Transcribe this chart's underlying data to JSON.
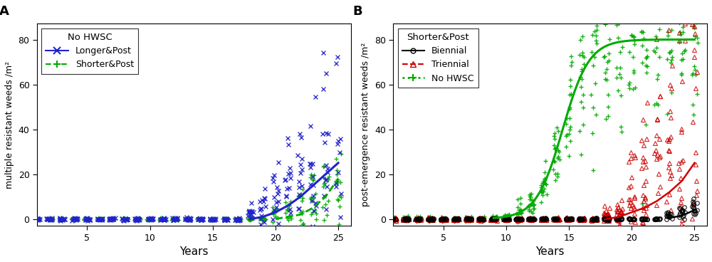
{
  "panel_A": {
    "title": "A",
    "xlabel": "Years",
    "ylabel": "multiple resistant weeds /m²",
    "legend_title": "No HWSC",
    "xlim": [
      1,
      26
    ],
    "ylim": [
      -3,
      87
    ],
    "yticks": [
      0,
      20,
      40,
      60,
      80
    ],
    "xticks": [
      5,
      10,
      15,
      20,
      25
    ]
  },
  "panel_B": {
    "title": "B",
    "xlabel": "Years",
    "ylabel": "post-emergence resistant weeds /m²",
    "legend_title": "Shorter&Post",
    "xlim": [
      1,
      26
    ],
    "ylim": [
      -3,
      87
    ],
    "yticks": [
      0,
      20,
      40,
      60,
      80
    ],
    "xticks": [
      5,
      10,
      15,
      20,
      25
    ]
  },
  "colors": {
    "blue": "#2222CC",
    "green": "#00AA00",
    "black": "#000000",
    "red": "#CC0000"
  }
}
